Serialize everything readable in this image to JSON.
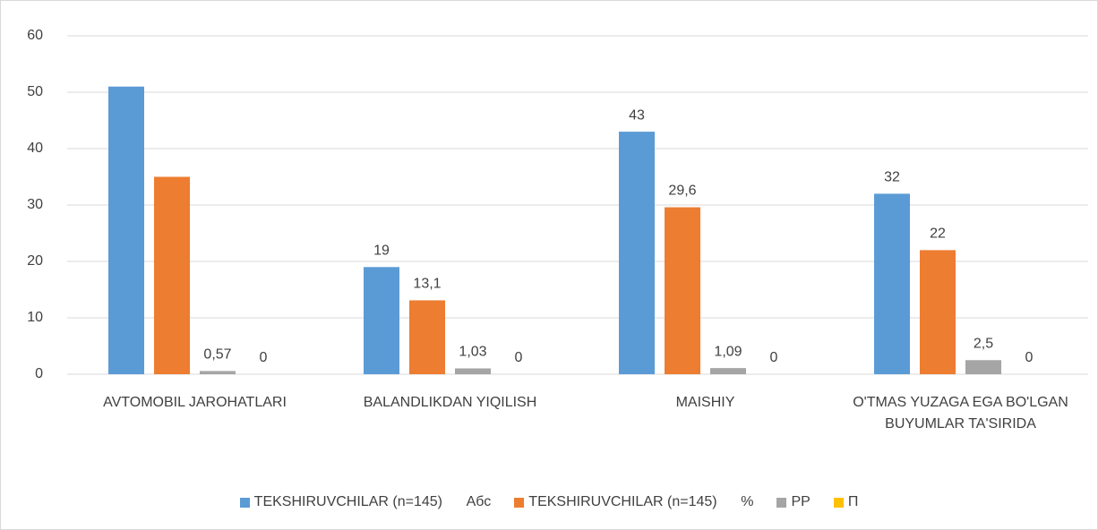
{
  "chart_data": {
    "type": "bar",
    "categories": [
      "AVTOMOBIL JAROHATLARI",
      "BALANDLIKDAN YIQILISH",
      "MAISHIY",
      "O'TMAS YUZAGA EGA BO'LGAN BUYUMLAR TA'SIRIDA"
    ],
    "series": [
      {
        "name": "TEKSHIRUVCHILAR (n=145)      Абс",
        "color": "#5b9bd5",
        "values": [
          51,
          19,
          43,
          32
        ],
        "value_labels": [
          null,
          "19",
          "43",
          "32"
        ]
      },
      {
        "name": "TEKSHIRUVCHILAR (n=145)      %",
        "color": "#ed7d31",
        "values": [
          35,
          13.1,
          29.6,
          22
        ],
        "value_labels": [
          null,
          "13,1",
          "29,6",
          "22"
        ]
      },
      {
        "name": "PP",
        "color": "#a5a5a5",
        "values": [
          0.57,
          1.03,
          1.09,
          2.5
        ],
        "value_labels": [
          "0,57",
          "1,03",
          "1,09",
          "2,5"
        ]
      },
      {
        "name": "П",
        "color": "#ffc000",
        "values": [
          0,
          0,
          0,
          0
        ],
        "value_labels": [
          "0",
          "0",
          "0",
          "0"
        ]
      }
    ],
    "ylim": [
      0,
      60
    ],
    "yticks": [
      0,
      10,
      20,
      30,
      40,
      50,
      60
    ],
    "grid": true,
    "legend": "bottom"
  }
}
